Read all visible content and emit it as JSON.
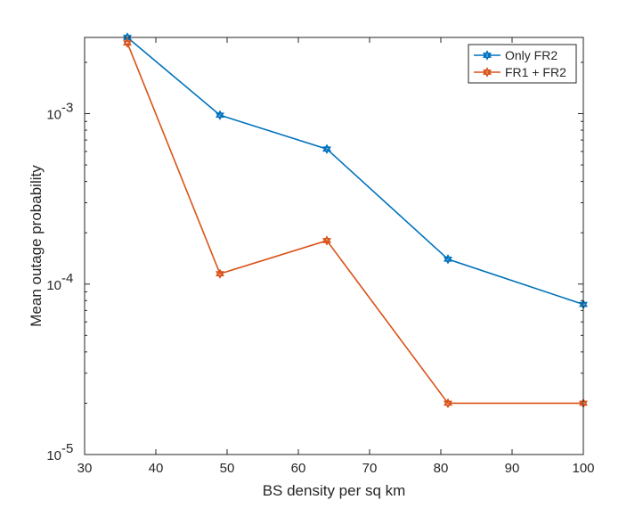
{
  "chart_data": {
    "type": "line",
    "title": "",
    "xlabel": "BS density per sq km",
    "ylabel": "Mean outage probability",
    "x": [
      36,
      49,
      64,
      81,
      100
    ],
    "xlim": [
      30,
      100
    ],
    "ylim": [
      1e-05,
      0.0028
    ],
    "yscale": "log",
    "grid": false,
    "legend_position": "top-right",
    "x_ticks": [
      30,
      40,
      50,
      60,
      70,
      80,
      90,
      100
    ],
    "x_tick_labels": [
      "30",
      "40",
      "50",
      "60",
      "70",
      "80",
      "90",
      "100"
    ],
    "y_ticks": [
      {
        "value": 1e-05,
        "base": "10",
        "exp": "-5"
      },
      {
        "value": 0.0001,
        "base": "10",
        "exp": "-4"
      },
      {
        "value": 0.001,
        "base": "10",
        "exp": "-3"
      }
    ],
    "series": [
      {
        "name": "Only FR2",
        "color": "#0072BD",
        "values": [
          0.0028,
          0.00098,
          0.00062,
          0.00014,
          7.6e-05
        ]
      },
      {
        "name": "FR1 + FR2",
        "color": "#D95319",
        "values": [
          0.0026,
          0.000115,
          0.00018,
          2e-05,
          2e-05
        ]
      }
    ]
  }
}
